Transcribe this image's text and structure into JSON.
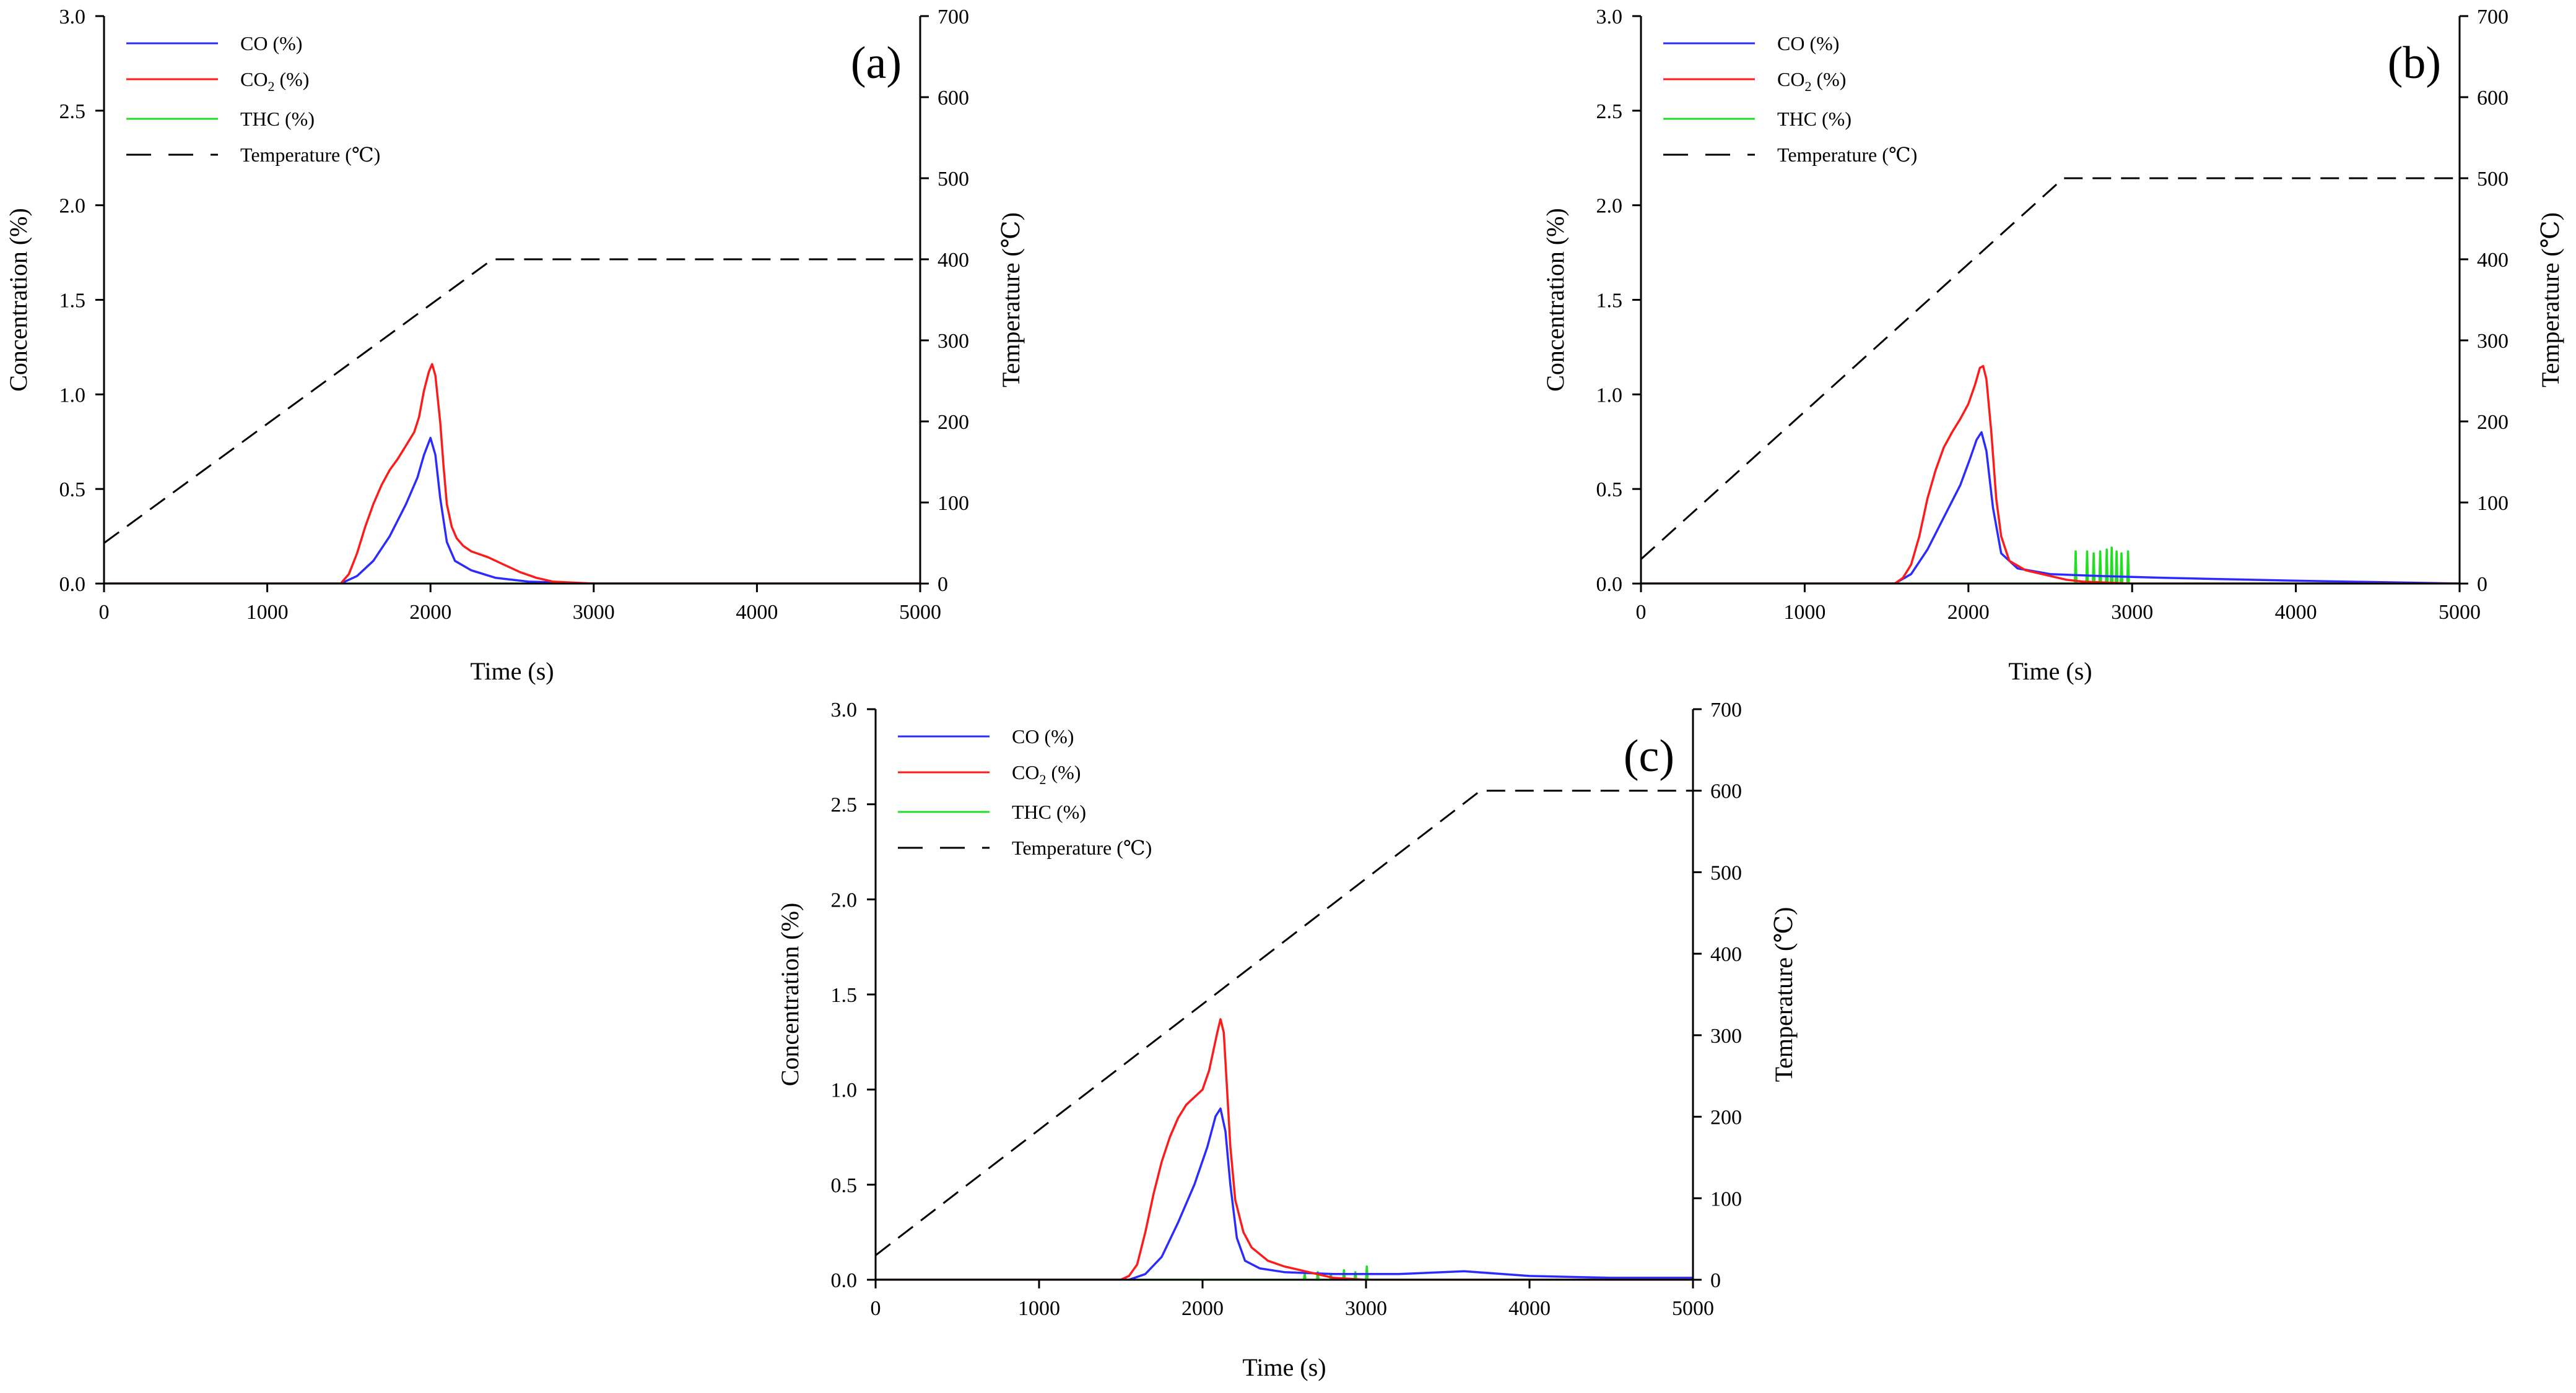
{
  "chart_data": [
    {
      "type": "line",
      "panel_label": "(a)",
      "xlabel": "Time (s)",
      "ylabel": "Concentration (%)",
      "y2label": "Temperature (℃)",
      "xlim": [
        0,
        5000
      ],
      "ylim": [
        0,
        3.0
      ],
      "y2lim": [
        0,
        700
      ],
      "x_ticks": [
        "0",
        "1000",
        "2000",
        "3000",
        "4000",
        "5000"
      ],
      "y_ticks": [
        "0.0",
        "0.5",
        "1.0",
        "1.5",
        "2.0",
        "2.5",
        "3.0"
      ],
      "y2_ticks": [
        "0",
        "100",
        "200",
        "300",
        "400",
        "500",
        "600",
        "700"
      ],
      "legend_position": "top-left",
      "series": [
        {
          "name": "CO (%)",
          "legend_label": "CO (%)",
          "color": "#2b2bff",
          "dash": "solid",
          "axis": "left",
          "x": [
            0,
            1450,
            1550,
            1650,
            1750,
            1850,
            1920,
            1960,
            2000,
            2030,
            2060,
            2100,
            2150,
            2250,
            2400,
            2600,
            3000,
            5000
          ],
          "y": [
            0.0,
            0.0,
            0.04,
            0.12,
            0.25,
            0.42,
            0.56,
            0.68,
            0.77,
            0.68,
            0.45,
            0.22,
            0.12,
            0.07,
            0.03,
            0.01,
            0.0,
            0.0
          ]
        },
        {
          "name": "CO2 (%)",
          "legend_label": "CO",
          "legend_sub": "2",
          "legend_suffix": " (%)",
          "color": "#ff1a1a",
          "dash": "solid",
          "axis": "left",
          "x": [
            0,
            1450,
            1500,
            1550,
            1600,
            1650,
            1700,
            1750,
            1800,
            1850,
            1900,
            1930,
            1960,
            1990,
            2010,
            2030,
            2060,
            2080,
            2100,
            2130,
            2160,
            2200,
            2250,
            2350,
            2450,
            2550,
            2650,
            2750,
            3000,
            5000
          ],
          "y": [
            0.0,
            0.0,
            0.05,
            0.16,
            0.3,
            0.42,
            0.52,
            0.6,
            0.66,
            0.73,
            0.8,
            0.88,
            1.02,
            1.12,
            1.16,
            1.1,
            0.85,
            0.62,
            0.42,
            0.3,
            0.24,
            0.2,
            0.17,
            0.14,
            0.1,
            0.06,
            0.03,
            0.01,
            0.0,
            0.0
          ]
        },
        {
          "name": "THC (%)",
          "legend_label": "THC (%)",
          "color": "#22dd22",
          "dash": "solid",
          "axis": "left",
          "x": [
            0,
            5000
          ],
          "y": [
            0.0,
            0.0
          ]
        },
        {
          "name": "Temperature (℃)",
          "legend_label": "Temperature (℃)",
          "color": "#000000",
          "dash": "dashed",
          "axis": "right",
          "x": [
            0,
            2380,
            5000
          ],
          "y": [
            50,
            400,
            400
          ]
        }
      ]
    },
    {
      "type": "line",
      "panel_label": "(b)",
      "xlabel": "Time (s)",
      "ylabel": "Concentration (%)",
      "y2label": "Temperature (℃)",
      "xlim": [
        0,
        5000
      ],
      "ylim": [
        0,
        3.0
      ],
      "y2lim": [
        0,
        700
      ],
      "x_ticks": [
        "0",
        "1000",
        "2000",
        "3000",
        "4000",
        "5000"
      ],
      "y_ticks": [
        "0.0",
        "0.5",
        "1.0",
        "1.5",
        "2.0",
        "2.5",
        "3.0"
      ],
      "y2_ticks": [
        "0",
        "100",
        "200",
        "300",
        "400",
        "500",
        "600",
        "700"
      ],
      "legend_position": "top-left",
      "series": [
        {
          "name": "CO (%)",
          "legend_label": "CO (%)",
          "color": "#2b2bff",
          "dash": "solid",
          "axis": "left",
          "x": [
            0,
            1550,
            1650,
            1750,
            1850,
            1950,
            2010,
            2050,
            2080,
            2110,
            2150,
            2200,
            2300,
            2500,
            2800,
            3200,
            4000,
            5000
          ],
          "y": [
            0.0,
            0.0,
            0.05,
            0.18,
            0.35,
            0.52,
            0.66,
            0.76,
            0.8,
            0.7,
            0.4,
            0.16,
            0.08,
            0.05,
            0.04,
            0.03,
            0.015,
            0.0
          ]
        },
        {
          "name": "CO2 (%)",
          "legend_label": "CO",
          "legend_sub": "2",
          "legend_suffix": " (%)",
          "color": "#ff1a1a",
          "dash": "solid",
          "axis": "left",
          "x": [
            0,
            1550,
            1600,
            1650,
            1700,
            1750,
            1800,
            1850,
            1900,
            1950,
            2000,
            2040,
            2070,
            2090,
            2110,
            2140,
            2170,
            2200,
            2250,
            2350,
            2500,
            2600,
            2700,
            3000,
            5000
          ],
          "y": [
            0.0,
            0.0,
            0.03,
            0.1,
            0.25,
            0.45,
            0.6,
            0.72,
            0.8,
            0.87,
            0.95,
            1.05,
            1.14,
            1.15,
            1.08,
            0.8,
            0.45,
            0.25,
            0.12,
            0.07,
            0.04,
            0.02,
            0.01,
            0.0,
            0.0
          ]
        },
        {
          "name": "THC (%)",
          "legend_label": "THC (%)",
          "color": "#22dd22",
          "dash": "solid",
          "axis": "left",
          "x": [
            0,
            2650,
            2655,
            2660,
            2720,
            2725,
            2730,
            2760,
            2765,
            2770,
            2800,
            2805,
            2810,
            2840,
            2845,
            2850,
            2870,
            2875,
            2880,
            2900,
            2905,
            2910,
            2930,
            2935,
            2940,
            2970,
            2975,
            2980,
            5000
          ],
          "y": [
            0.0,
            0.0,
            0.17,
            0.0,
            0.0,
            0.17,
            0.0,
            0.0,
            0.16,
            0.0,
            0.0,
            0.17,
            0.0,
            0.0,
            0.18,
            0.0,
            0.0,
            0.19,
            0.0,
            0.0,
            0.17,
            0.0,
            0.0,
            0.16,
            0.0,
            0.0,
            0.17,
            0.0,
            0.0
          ]
        },
        {
          "name": "Temperature (℃)",
          "legend_label": "Temperature (℃)",
          "color": "#000000",
          "dash": "dashed",
          "axis": "right",
          "x": [
            0,
            2580,
            5000
          ],
          "y": [
            30,
            500,
            500
          ]
        }
      ]
    },
    {
      "type": "line",
      "panel_label": "(c)",
      "xlabel": "Time (s)",
      "ylabel": "Concentration (%)",
      "y2label": "Temperature (℃)",
      "xlim": [
        0,
        5000
      ],
      "ylim": [
        0,
        3.0
      ],
      "y2lim": [
        0,
        700
      ],
      "x_ticks": [
        "0",
        "1000",
        "2000",
        "3000",
        "4000",
        "5000"
      ],
      "y_ticks": [
        "0.0",
        "0.5",
        "1.0",
        "1.5",
        "2.0",
        "2.5",
        "3.0"
      ],
      "y2_ticks": [
        "0",
        "100",
        "200",
        "300",
        "400",
        "500",
        "600",
        "700"
      ],
      "legend_position": "top-left",
      "series": [
        {
          "name": "CO (%)",
          "legend_label": "CO (%)",
          "color": "#2b2bff",
          "dash": "solid",
          "axis": "left",
          "x": [
            0,
            1550,
            1650,
            1750,
            1850,
            1950,
            2030,
            2080,
            2110,
            2140,
            2170,
            2210,
            2260,
            2350,
            2500,
            2800,
            3200,
            3600,
            4000,
            4500,
            5000
          ],
          "y": [
            0.0,
            0.0,
            0.03,
            0.12,
            0.3,
            0.5,
            0.7,
            0.86,
            0.9,
            0.78,
            0.5,
            0.22,
            0.1,
            0.06,
            0.04,
            0.03,
            0.03,
            0.045,
            0.02,
            0.01,
            0.01
          ]
        },
        {
          "name": "CO2 (%)",
          "legend_label": "CO",
          "legend_sub": "2",
          "legend_suffix": " (%)",
          "color": "#ff1a1a",
          "dash": "solid",
          "axis": "left",
          "x": [
            0,
            1500,
            1550,
            1600,
            1650,
            1700,
            1750,
            1800,
            1850,
            1900,
            1950,
            2000,
            2040,
            2070,
            2090,
            2110,
            2130,
            2150,
            2170,
            2200,
            2250,
            2300,
            2400,
            2500,
            2600,
            2700,
            2800,
            3000,
            5000
          ],
          "y": [
            0.0,
            0.0,
            0.02,
            0.08,
            0.25,
            0.45,
            0.62,
            0.75,
            0.85,
            0.92,
            0.96,
            1.0,
            1.1,
            1.22,
            1.3,
            1.37,
            1.3,
            1.0,
            0.7,
            0.42,
            0.25,
            0.17,
            0.1,
            0.07,
            0.05,
            0.03,
            0.01,
            0.0,
            0.0
          ]
        },
        {
          "name": "THC (%)",
          "legend_label": "THC (%)",
          "color": "#22dd22",
          "dash": "solid",
          "axis": "left",
          "x": [
            0,
            2620,
            2625,
            2630,
            2700,
            2705,
            2710,
            2780,
            2785,
            2790,
            2860,
            2865,
            2870,
            2930,
            2935,
            2940,
            3000,
            3005,
            3010,
            5000
          ],
          "y": [
            0.0,
            0.0,
            0.03,
            0.0,
            0.0,
            0.04,
            0.0,
            0.0,
            0.03,
            0.0,
            0.0,
            0.05,
            0.0,
            0.0,
            0.04,
            0.0,
            0.0,
            0.07,
            0.0,
            0.0
          ]
        },
        {
          "name": "Temperature (℃)",
          "legend_label": "Temperature (℃)",
          "color": "#000000",
          "dash": "dashed",
          "axis": "right",
          "x": [
            0,
            3700,
            5000
          ],
          "y": [
            30,
            600,
            600
          ]
        }
      ]
    }
  ]
}
